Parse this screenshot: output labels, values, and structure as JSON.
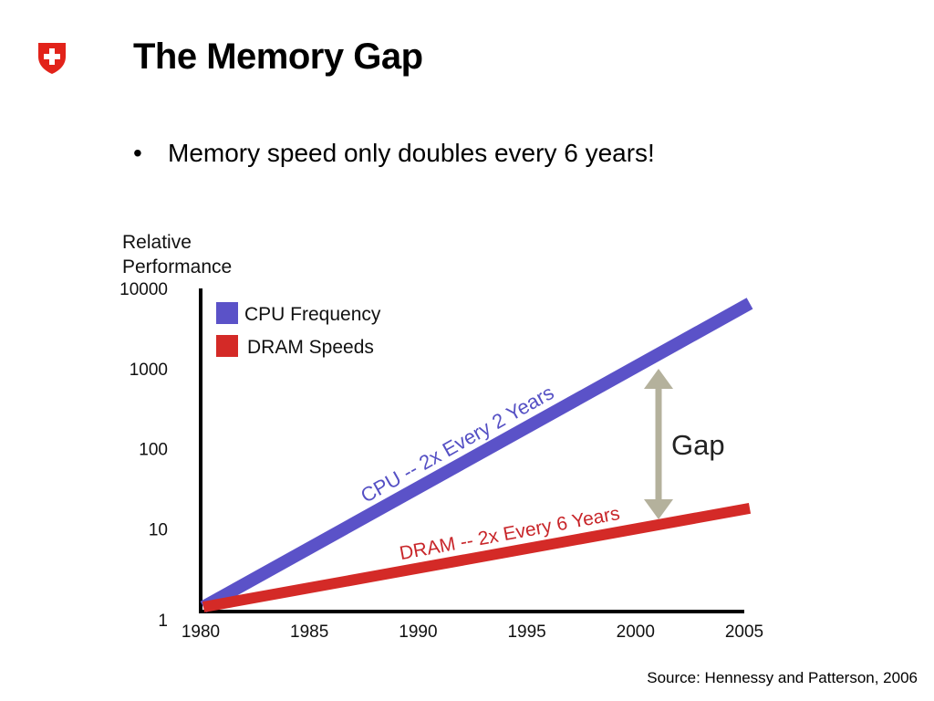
{
  "slide": {
    "title": "The Memory Gap",
    "bullet_marker": "•",
    "bullet": "Memory speed only doubles every 6 years!",
    "source": "Source: Hennessy and Patterson, 2006",
    "logo_icon": "swiss-cross-shield-icon",
    "logo_color": "#e2231a"
  },
  "chart_data": {
    "type": "line",
    "ylabel": [
      "Relative",
      "Performance"
    ],
    "xlabel": "",
    "y_scale": "log",
    "ylim": [
      1,
      10000
    ],
    "xlim": [
      1980,
      2005
    ],
    "y_ticks": [
      "1",
      "10",
      "100",
      "1000",
      "10000"
    ],
    "y_tick_values": [
      1,
      10,
      100,
      1000,
      10000
    ],
    "x_ticks": [
      "1980",
      "1985",
      "1990",
      "1995",
      "2000",
      "2005"
    ],
    "x_tick_values": [
      1980,
      1985,
      1990,
      1995,
      2000,
      2005
    ],
    "grid": false,
    "legend_position": "top-left",
    "series": [
      {
        "name": "CPU Frequency",
        "color": "#5b52c8",
        "x": [
          1980,
          2005
        ],
        "values": [
          1,
          6500
        ],
        "annotation": "CPU -- 2x Every 2 Years",
        "annotation_color": "#5550c4"
      },
      {
        "name": "DRAM Speeds",
        "color": "#d42a27",
        "x": [
          1980,
          2005
        ],
        "values": [
          1,
          18
        ],
        "annotation": "DRAM -- 2x Every 6 Years",
        "annotation_color": "#c8262a"
      }
    ],
    "gap": {
      "label": "Gap",
      "color": "#b4b19c",
      "x": 2001
    }
  }
}
